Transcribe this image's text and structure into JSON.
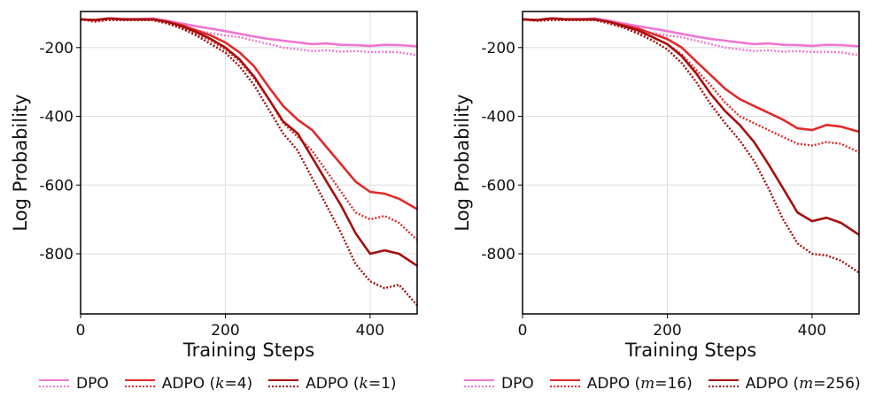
{
  "chart_data": [
    {
      "type": "line",
      "xlabel": "Training Steps",
      "ylabel": "Log Probability",
      "xlim": [
        0,
        465
      ],
      "ylim": [
        -975,
        -95
      ],
      "xticks": [
        0,
        200,
        400
      ],
      "yticks": [
        -200,
        -400,
        -600,
        -800
      ],
      "xtick_labels": [
        "0",
        "200",
        "400"
      ],
      "ytick_labels": [
        "-200",
        "-400",
        "-600",
        "-800"
      ],
      "grid": true,
      "legend_position": "below",
      "legend": [
        {
          "name": "DPO",
          "param": "",
          "value": "",
          "color": "#f075d2"
        },
        {
          "name": "ADPO (",
          "param": "k",
          "value": "4)",
          "color": "#e02a2a"
        },
        {
          "name": "ADPO (",
          "param": "k",
          "value": "1)",
          "color": "#a50f0f"
        }
      ],
      "series": [
        {
          "color": "#f075d2",
          "style": "solid",
          "x": [
            0,
            20,
            40,
            60,
            80,
            100,
            120,
            140,
            160,
            180,
            200,
            220,
            240,
            260,
            280,
            300,
            320,
            340,
            360,
            380,
            400,
            420,
            440,
            465
          ],
          "y": [
            -118,
            -120,
            -115,
            -117,
            -117,
            -115,
            -122,
            -130,
            -138,
            -145,
            -152,
            -160,
            -168,
            -175,
            -180,
            -185,
            -190,
            -188,
            -192,
            -193,
            -195,
            -192,
            -193,
            -196
          ]
        },
        {
          "color": "#f075d2",
          "style": "dotted",
          "x": [
            0,
            20,
            40,
            60,
            80,
            100,
            120,
            140,
            160,
            180,
            200,
            220,
            240,
            260,
            280,
            300,
            320,
            340,
            360,
            380,
            400,
            420,
            440,
            465
          ],
          "y": [
            -118,
            -120,
            -118,
            -120,
            -117,
            -120,
            -128,
            -140,
            -150,
            -158,
            -165,
            -170,
            -180,
            -190,
            -200,
            -205,
            -210,
            -208,
            -212,
            -210,
            -213,
            -212,
            -214,
            -222
          ]
        },
        {
          "color": "#e02a2a",
          "style": "solid",
          "x": [
            0,
            20,
            40,
            60,
            80,
            100,
            120,
            140,
            160,
            180,
            200,
            220,
            240,
            260,
            280,
            300,
            320,
            340,
            360,
            380,
            400,
            420,
            440,
            465
          ],
          "y": [
            -118,
            -120,
            -115,
            -118,
            -118,
            -118,
            -125,
            -135,
            -150,
            -165,
            -185,
            -215,
            -255,
            -315,
            -370,
            -410,
            -440,
            -490,
            -540,
            -590,
            -620,
            -625,
            -640,
            -670
          ]
        },
        {
          "color": "#e02a2a",
          "style": "dotted",
          "x": [
            0,
            20,
            40,
            60,
            80,
            100,
            120,
            140,
            160,
            180,
            200,
            220,
            240,
            260,
            280,
            300,
            320,
            340,
            360,
            380,
            400,
            420,
            440,
            465
          ],
          "y": [
            -118,
            -125,
            -118,
            -120,
            -120,
            -120,
            -130,
            -142,
            -160,
            -180,
            -205,
            -240,
            -290,
            -350,
            -420,
            -460,
            -500,
            -560,
            -620,
            -680,
            -700,
            -690,
            -710,
            -760
          ]
        },
        {
          "color": "#a50f0f",
          "style": "solid",
          "x": [
            0,
            20,
            40,
            60,
            80,
            100,
            120,
            140,
            160,
            180,
            200,
            220,
            240,
            260,
            280,
            300,
            320,
            340,
            360,
            380,
            400,
            420,
            440,
            465
          ],
          "y": [
            -118,
            -120,
            -115,
            -118,
            -118,
            -118,
            -125,
            -138,
            -155,
            -175,
            -200,
            -235,
            -285,
            -350,
            -415,
            -450,
            -520,
            -590,
            -660,
            -740,
            -800,
            -790,
            -800,
            -835
          ]
        },
        {
          "color": "#a50f0f",
          "style": "dotted",
          "x": [
            0,
            20,
            40,
            60,
            80,
            100,
            120,
            140,
            160,
            180,
            200,
            220,
            240,
            260,
            280,
            300,
            320,
            340,
            360,
            380,
            400,
            420,
            440,
            465
          ],
          "y": [
            -118,
            -122,
            -120,
            -120,
            -120,
            -120,
            -130,
            -145,
            -165,
            -190,
            -215,
            -255,
            -310,
            -380,
            -450,
            -500,
            -580,
            -660,
            -740,
            -830,
            -880,
            -900,
            -890,
            -950
          ]
        }
      ]
    },
    {
      "type": "line",
      "xlabel": "Training Steps",
      "ylabel": "Log Probability",
      "xlim": [
        0,
        465
      ],
      "ylim": [
        -975,
        -95
      ],
      "xticks": [
        0,
        200,
        400
      ],
      "yticks": [
        -200,
        -400,
        -600,
        -800
      ],
      "xtick_labels": [
        "0",
        "200",
        "400"
      ],
      "ytick_labels": [
        "-200",
        "-400",
        "-600",
        "-800"
      ],
      "grid": true,
      "legend_position": "below",
      "legend": [
        {
          "name": "DPO",
          "param": "",
          "value": "",
          "color": "#f075d2"
        },
        {
          "name": "ADPO (",
          "param": "m",
          "value": "16)",
          "color": "#e02a2a"
        },
        {
          "name": "ADPO (",
          "param": "m",
          "value": "256)",
          "color": "#a50f0f"
        }
      ],
      "series": [
        {
          "color": "#f075d2",
          "style": "solid",
          "x": [
            0,
            20,
            40,
            60,
            80,
            100,
            120,
            140,
            160,
            180,
            200,
            220,
            240,
            260,
            280,
            300,
            320,
            340,
            360,
            380,
            400,
            420,
            440,
            465
          ],
          "y": [
            -118,
            -120,
            -115,
            -117,
            -117,
            -115,
            -122,
            -130,
            -138,
            -145,
            -152,
            -160,
            -168,
            -175,
            -180,
            -185,
            -190,
            -188,
            -192,
            -193,
            -195,
            -192,
            -193,
            -196
          ]
        },
        {
          "color": "#f075d2",
          "style": "dotted",
          "x": [
            0,
            20,
            40,
            60,
            80,
            100,
            120,
            140,
            160,
            180,
            200,
            220,
            240,
            260,
            280,
            300,
            320,
            340,
            360,
            380,
            400,
            420,
            440,
            465
          ],
          "y": [
            -118,
            -120,
            -118,
            -120,
            -117,
            -120,
            -128,
            -140,
            -150,
            -158,
            -165,
            -170,
            -180,
            -190,
            -200,
            -205,
            -210,
            -208,
            -212,
            -210,
            -213,
            -212,
            -214,
            -222
          ]
        },
        {
          "color": "#e02a2a",
          "style": "solid",
          "x": [
            0,
            20,
            40,
            60,
            80,
            100,
            120,
            140,
            160,
            180,
            200,
            220,
            240,
            260,
            280,
            300,
            320,
            340,
            360,
            380,
            400,
            420,
            440,
            465
          ],
          "y": [
            -118,
            -120,
            -115,
            -118,
            -118,
            -118,
            -125,
            -135,
            -145,
            -160,
            -175,
            -200,
            -240,
            -280,
            -320,
            -350,
            -370,
            -390,
            -410,
            -435,
            -440,
            -425,
            -430,
            -445
          ]
        },
        {
          "color": "#e02a2a",
          "style": "dotted",
          "x": [
            0,
            20,
            40,
            60,
            80,
            100,
            120,
            140,
            160,
            180,
            200,
            220,
            240,
            260,
            280,
            300,
            320,
            340,
            360,
            380,
            400,
            420,
            440,
            465
          ],
          "y": [
            -118,
            -122,
            -118,
            -120,
            -120,
            -120,
            -130,
            -140,
            -155,
            -170,
            -190,
            -220,
            -265,
            -310,
            -360,
            -400,
            -420,
            -440,
            -460,
            -480,
            -485,
            -475,
            -480,
            -505
          ]
        },
        {
          "color": "#a50f0f",
          "style": "solid",
          "x": [
            0,
            20,
            40,
            60,
            80,
            100,
            120,
            140,
            160,
            180,
            200,
            220,
            240,
            260,
            280,
            300,
            320,
            340,
            360,
            380,
            400,
            420,
            440,
            465
          ],
          "y": [
            -118,
            -120,
            -115,
            -118,
            -118,
            -118,
            -125,
            -138,
            -150,
            -170,
            -190,
            -225,
            -275,
            -335,
            -385,
            -425,
            -475,
            -540,
            -610,
            -680,
            -705,
            -695,
            -710,
            -745
          ]
        },
        {
          "color": "#a50f0f",
          "style": "dotted",
          "x": [
            0,
            20,
            40,
            60,
            80,
            100,
            120,
            140,
            160,
            180,
            200,
            220,
            240,
            260,
            280,
            300,
            320,
            340,
            360,
            380,
            400,
            420,
            440,
            465
          ],
          "y": [
            -118,
            -122,
            -120,
            -120,
            -120,
            -120,
            -130,
            -142,
            -160,
            -180,
            -205,
            -245,
            -300,
            -365,
            -420,
            -470,
            -530,
            -610,
            -700,
            -770,
            -800,
            -805,
            -820,
            -855
          ]
        }
      ]
    }
  ]
}
